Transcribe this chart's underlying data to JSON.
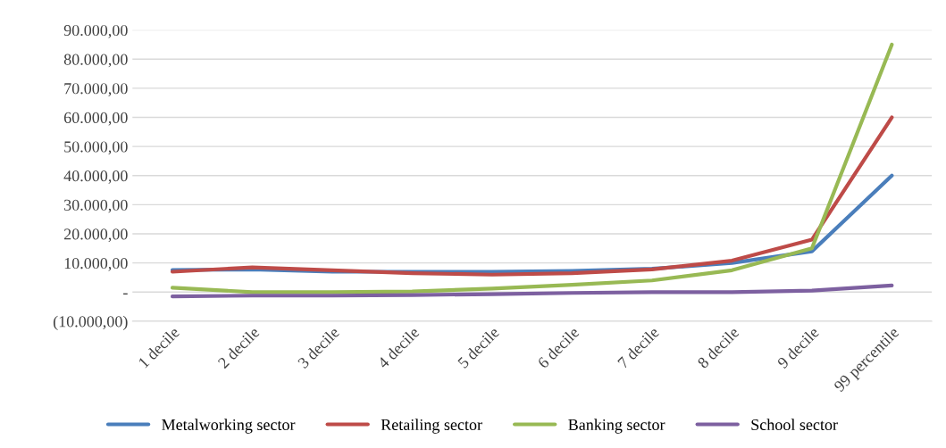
{
  "chart_data": {
    "type": "line",
    "categories": [
      "1 decile",
      "2 decile",
      "3 decile",
      "4 decile",
      "5 decile",
      "6 decile",
      "7 decile",
      "8 decile",
      "9 decile",
      "99 percentile"
    ],
    "series": [
      {
        "name": "Metalworking sector",
        "color": "#4a7ebb",
        "values": [
          7600,
          7800,
          7000,
          7000,
          7000,
          7300,
          8000,
          10000,
          14000,
          40000
        ]
      },
      {
        "name": "Retailing sector",
        "color": "#be4b48",
        "values": [
          7000,
          8500,
          7500,
          6500,
          6000,
          6500,
          7800,
          10800,
          18000,
          60000
        ]
      },
      {
        "name": "Banking sector",
        "color": "#98b954",
        "values": [
          1500,
          0,
          0,
          200,
          1200,
          2500,
          4000,
          7500,
          15000,
          85000
        ]
      },
      {
        "name": "School sector",
        "color": "#7d60a0",
        "values": [
          -1500,
          -1200,
          -1200,
          -1000,
          -700,
          -300,
          0,
          0,
          500,
          2300
        ]
      }
    ],
    "ylim": [
      -10000,
      90000
    ],
    "yticks": [
      {
        "value": -10000,
        "label": "(10.000,00)"
      },
      {
        "value": 0,
        "label": "-"
      },
      {
        "value": 10000,
        "label": "10.000,00"
      },
      {
        "value": 20000,
        "label": "20.000,00"
      },
      {
        "value": 30000,
        "label": "30.000,00"
      },
      {
        "value": 40000,
        "label": "40.000,00"
      },
      {
        "value": 50000,
        "label": "50.000,00"
      },
      {
        "value": 60000,
        "label": "60.000,00"
      },
      {
        "value": 70000,
        "label": "70.000,00"
      },
      {
        "value": 80000,
        "label": "80.000,00"
      },
      {
        "value": 90000,
        "label": "90.000,00"
      }
    ],
    "grid": "y",
    "legend": "bottom",
    "marker": "none",
    "line_style": "solid"
  }
}
